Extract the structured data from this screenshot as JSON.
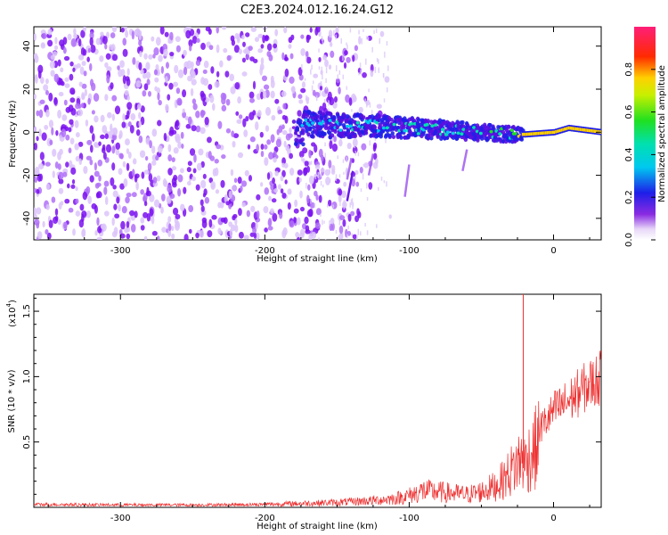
{
  "page_title": "C2E3.2024.012.16.24.G12",
  "chart_data": [
    {
      "type": "heatmap",
      "title": "",
      "xlabel": "Height of straight line (km)",
      "ylabel": "Frequency (Hz)",
      "xlim": [
        -360,
        33
      ],
      "ylim": [
        -50,
        49
      ],
      "xticks": [
        -300,
        -200,
        -100,
        0
      ],
      "yticks": [
        -40,
        -20,
        0,
        20,
        40
      ],
      "colorbar": {
        "label": "Normalized spectral amplitude",
        "range": [
          0,
          1
        ],
        "ticks": [
          0.0,
          0.2,
          0.4,
          0.6,
          0.8
        ],
        "colormap": "rainbow (white-purple-blue-cyan-green-yellow-red-magenta)"
      },
      "features": {
        "noise_region_x": [
          -360,
          -170
        ],
        "signal_trace": [
          {
            "x": -175,
            "y": 4,
            "amplitude": 0.3
          },
          {
            "x": -150,
            "y": 3,
            "amplitude": 0.35
          },
          {
            "x": -125,
            "y": 3,
            "amplitude": 0.35
          },
          {
            "x": -100,
            "y": 2,
            "amplitude": 0.4
          },
          {
            "x": -75,
            "y": 1,
            "amplitude": 0.4
          },
          {
            "x": -50,
            "y": 0,
            "amplitude": 0.45
          },
          {
            "x": -30,
            "y": -1,
            "amplitude": 0.45
          },
          {
            "x": -20,
            "y": -1,
            "amplitude": 0.9
          },
          {
            "x": 0,
            "y": 0,
            "amplitude": 0.9
          },
          {
            "x": 10,
            "y": 2,
            "amplitude": 0.85
          },
          {
            "x": 33,
            "y": 0,
            "amplitude": 0.9
          }
        ]
      }
    },
    {
      "type": "line",
      "title": "",
      "xlabel": "Height of straight line (km)",
      "ylabel": "SNR (10 * v/v)",
      "y_multiplier_label": "(x10",
      "y_multiplier_exp": "4",
      "xlim": [
        -360,
        33
      ],
      "ylim": [
        0,
        1.63
      ],
      "xticks": [
        -300,
        -200,
        -100,
        0
      ],
      "yticks": [
        0.5,
        1.0,
        1.5
      ],
      "ytick_labels": [
        "0.5",
        "1.0",
        "1.5"
      ],
      "series": [
        {
          "color": "#ee3030",
          "x": [
            -360,
            -300,
            -250,
            -200,
            -175,
            -150,
            -125,
            -110,
            -100,
            -90,
            -75,
            -60,
            -50,
            -40,
            -35,
            -30,
            -25,
            -22,
            -21,
            -20,
            -18,
            -15,
            -10,
            -5,
            0,
            5,
            10,
            15,
            20,
            25,
            33
          ],
          "y": [
            0.03,
            0.025,
            0.025,
            0.03,
            0.04,
            0.05,
            0.07,
            0.09,
            0.12,
            0.17,
            0.15,
            0.13,
            0.16,
            0.22,
            0.28,
            0.36,
            0.45,
            0.5,
            1.63,
            0.45,
            0.5,
            0.55,
            0.65,
            0.72,
            0.8,
            0.84,
            0.88,
            0.93,
            0.98,
            1.02,
            1.08
          ]
        }
      ]
    }
  ]
}
